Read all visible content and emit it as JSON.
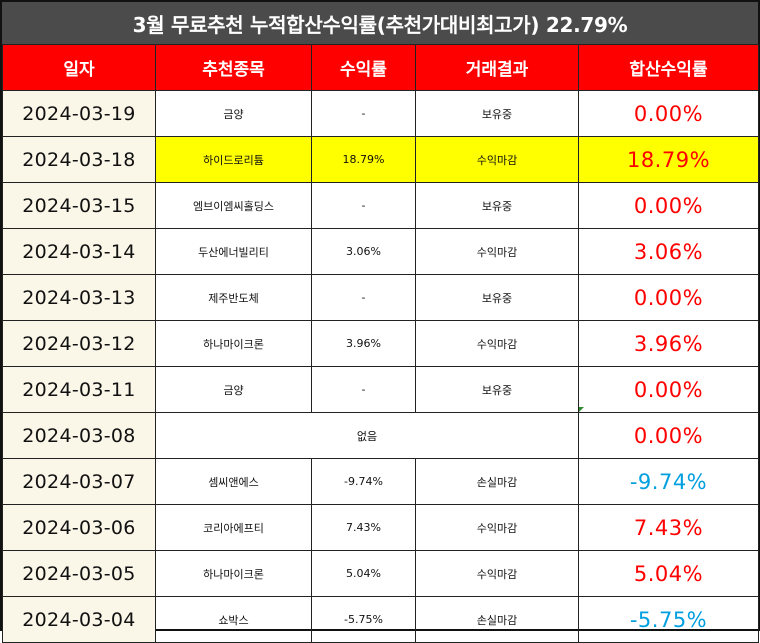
{
  "title": "3월 무료추천 누적합산수익률(추천가대비최고가) 22.79%",
  "colors": {
    "header_bg": "#ff0000",
    "title_bg": "#4b4b4b",
    "red": "#ff0000",
    "blue": "#00a0e0",
    "highlight": "#ffff00"
  },
  "headers": [
    "일자",
    "추천종목",
    "수익률",
    "거래결과",
    "합산수익률"
  ],
  "rows": [
    {
      "date": "2024-03-19",
      "stock": "금양",
      "pct": "-",
      "result": "보유중",
      "total": "0.00%",
      "stock_color": "black",
      "total_color": "red",
      "highlight": false
    },
    {
      "date": "2024-03-18",
      "stock": "하이드로리튬",
      "pct": "18.79%",
      "result": "수익마감",
      "total": "18.79%",
      "stock_color": "red",
      "total_color": "red",
      "highlight": true
    },
    {
      "date": "2024-03-15",
      "stock": "엠브이엠씨홀딩스",
      "pct": "-",
      "result": "보유중",
      "total": "0.00%",
      "stock_color": "black",
      "total_color": "red",
      "highlight": false
    },
    {
      "date": "2024-03-14",
      "stock": "두산에너빌리티",
      "pct": "3.06%",
      "result": "수익마감",
      "total": "3.06%",
      "stock_color": "red",
      "total_color": "red",
      "highlight": false
    },
    {
      "date": "2024-03-13",
      "stock": "제주반도체",
      "pct": "-",
      "result": "보유중",
      "total": "0.00%",
      "stock_color": "black",
      "total_color": "red",
      "highlight": false
    },
    {
      "date": "2024-03-12",
      "stock": "하나마이크론",
      "pct": "3.96%",
      "result": "수익마감",
      "total": "3.96%",
      "stock_color": "red",
      "total_color": "red",
      "highlight": false
    },
    {
      "date": "2024-03-11",
      "stock": "금양",
      "pct": "-",
      "result": "보유중",
      "total": "0.00%",
      "stock_color": "black",
      "total_color": "red",
      "highlight": false
    },
    {
      "date": "2024-03-08",
      "stock": "없음",
      "pct": "",
      "result": "",
      "total": "0.00%",
      "stock_color": "black",
      "total_color": "red",
      "highlight": false,
      "merged": true
    },
    {
      "date": "2024-03-07",
      "stock": "셈씨앤에스",
      "pct": "-9.74%",
      "result": "손실마감",
      "total": "-9.74%",
      "stock_color": "blue",
      "total_color": "blue",
      "highlight": false
    },
    {
      "date": "2024-03-06",
      "stock": "코리아에프티",
      "pct": "7.43%",
      "result": "수익마감",
      "total": "7.43%",
      "stock_color": "red",
      "total_color": "red",
      "highlight": false
    },
    {
      "date": "2024-03-05",
      "stock": "하나마이크론",
      "pct": "5.04%",
      "result": "수익마감",
      "total": "5.04%",
      "stock_color": "red",
      "total_color": "red",
      "highlight": false
    },
    {
      "date": "2024-03-04",
      "stock": "쇼박스",
      "pct": "-5.75%",
      "result": "손실마감",
      "total": "-5.75%",
      "stock_color": "blue",
      "total_color": "blue",
      "highlight": false
    }
  ]
}
